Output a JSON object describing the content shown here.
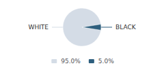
{
  "chart_data": {
    "type": "pie",
    "categories": [
      "WHITE",
      "BLACK"
    ],
    "values": [
      95.0,
      5.0
    ],
    "value_labels": [
      "95.0%",
      "5.0%"
    ],
    "colors": [
      "#d4dce6",
      "#2e5f7e"
    ],
    "legend": "bottom"
  }
}
